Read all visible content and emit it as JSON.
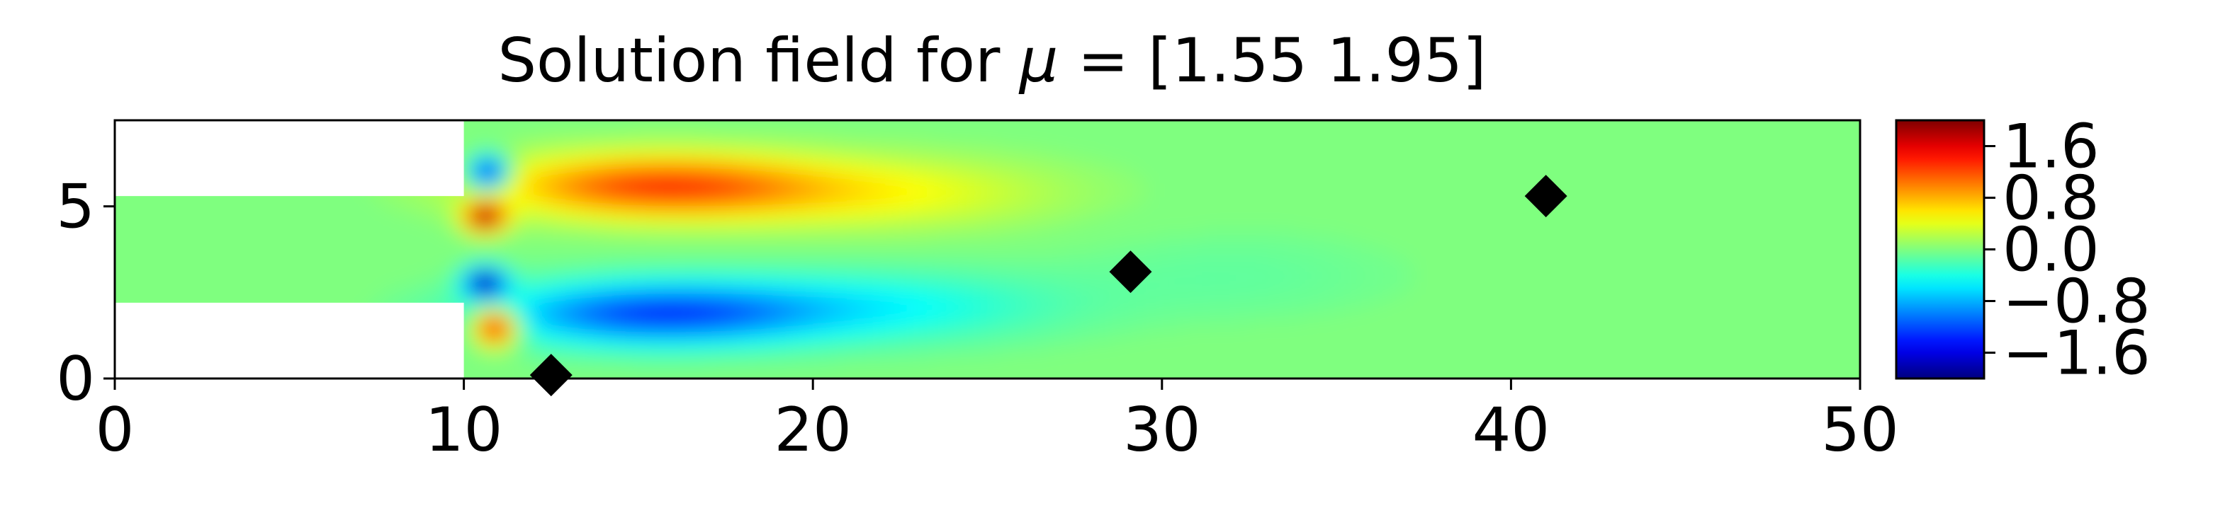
{
  "chart_data": {
    "type": "heatmap",
    "title_prefix": "Solution field for ",
    "title_symbol": "μ",
    "title_suffix": " = [1.55 1.95]",
    "xlabel": "",
    "ylabel": "",
    "xlim": [
      0,
      50
    ],
    "ylim": [
      0,
      7.5
    ],
    "x_ticks": [
      {
        "value": 0,
        "label": "0"
      },
      {
        "value": 10,
        "label": "10"
      },
      {
        "value": 20,
        "label": "20"
      },
      {
        "value": 30,
        "label": "30"
      },
      {
        "value": 40,
        "label": "40"
      },
      {
        "value": 50,
        "label": "50"
      }
    ],
    "y_ticks": [
      {
        "value": 0,
        "label": "0"
      },
      {
        "value": 5,
        "label": "5"
      }
    ],
    "grid": false,
    "colormap": "jet",
    "colorbar": {
      "range": [
        -2.0,
        2.0
      ],
      "ticks": [
        {
          "value": 1.6,
          "label": "1.6"
        },
        {
          "value": 0.8,
          "label": "0.8"
        },
        {
          "value": 0.0,
          "label": "0.0"
        },
        {
          "value": -0.8,
          "label": "−0.8"
        },
        {
          "value": -1.6,
          "label": "−1.6"
        }
      ]
    },
    "domain": {
      "inlet_channel": {
        "x": [
          0,
          10
        ],
        "y": [
          2.2,
          5.3
        ]
      },
      "main_chamber": {
        "x": [
          10,
          50
        ],
        "y": [
          0,
          7.5
        ]
      }
    },
    "background_value": 0.0,
    "field_features": [
      {
        "name": "upper-wake-positive",
        "cx": 15.5,
        "cy": 5.6,
        "sx": 4.5,
        "sy": 0.9,
        "value": 1.25
      },
      {
        "name": "upper-wake-tail",
        "cx": 22,
        "cy": 5.4,
        "sx": 5,
        "sy": 1.0,
        "value": 0.45
      },
      {
        "name": "lower-wake-negative",
        "cx": 15.5,
        "cy": 1.9,
        "sx": 4.5,
        "sy": 0.9,
        "value": -1.25
      },
      {
        "name": "lower-wake-tail",
        "cx": 22,
        "cy": 2.1,
        "sx": 5,
        "sy": 1.0,
        "value": -0.45
      },
      {
        "name": "upper-corner-vortex",
        "cx": 10.7,
        "cy": 6.0,
        "sx": 0.55,
        "sy": 0.45,
        "value": -1.9
      },
      {
        "name": "upper-lip-peak",
        "cx": 10.6,
        "cy": 4.7,
        "sx": 0.55,
        "sy": 0.4,
        "value": 2.0
      },
      {
        "name": "lower-lip-trough",
        "cx": 10.6,
        "cy": 2.8,
        "sx": 0.55,
        "sy": 0.4,
        "value": -2.0
      },
      {
        "name": "lower-corner-vortex",
        "cx": 10.9,
        "cy": 1.5,
        "sx": 0.6,
        "sy": 0.5,
        "value": 1.9
      },
      {
        "name": "far-lower-trough",
        "cx": 32,
        "cy": 3.0,
        "sx": 5,
        "sy": 1.3,
        "value": -0.12
      }
    ],
    "sensor_points": [
      {
        "x": 12.5,
        "y": 0.1
      },
      {
        "x": 29.1,
        "y": 3.1
      },
      {
        "x": 41.0,
        "y": 5.3
      }
    ],
    "colors": {
      "jet_stops": [
        "#00007f",
        "#0000ff",
        "#007fff",
        "#00ffff",
        "#7fff7f",
        "#ffff00",
        "#ff7f00",
        "#ff0000",
        "#7f0000"
      ],
      "marker": "#000000",
      "axes": "#000000"
    }
  }
}
